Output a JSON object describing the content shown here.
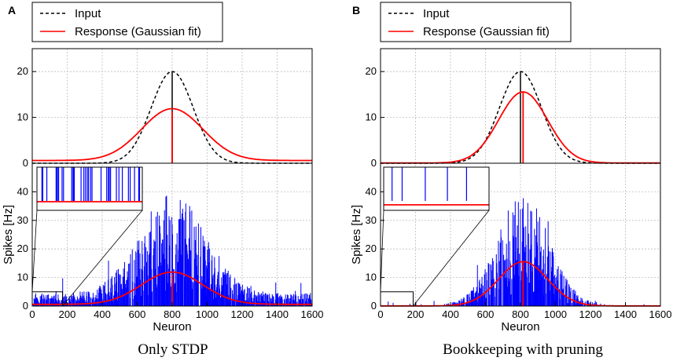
{
  "chart_data": [
    {
      "type": "line",
      "panel_label": "A",
      "caption": "Only STDP",
      "legend": [
        "Input",
        "Response (Gaussian fit)"
      ],
      "colors": {
        "input": "#000000",
        "response": "#ff0000",
        "spikes": "#0000ff",
        "marker": "#000000"
      },
      "top": {
        "ylim": [
          0,
          25
        ],
        "yticks": [
          "0",
          "10",
          "20"
        ],
        "input": {
          "amplitude": 20,
          "center": 800,
          "sigma": 120
        },
        "response": {
          "amplitude": 11.3,
          "baseline": 0.6,
          "center": 800,
          "sigma": 175
        }
      },
      "bottom": {
        "ylim": [
          0,
          50
        ],
        "yticks": [
          "0",
          "10",
          "20",
          "30",
          "40"
        ],
        "ylabel": "Spikes [Hz]",
        "xlabel": "Neuron",
        "xlim": [
          0,
          1600
        ],
        "xticks": [
          "0",
          "200",
          "400",
          "600",
          "800",
          "1000",
          "1200",
          "1400",
          "1600"
        ],
        "spike_amplitude": 20,
        "spike_background": 2.5,
        "fit": {
          "amplitude": 11.3,
          "baseline": 0.6,
          "center": 800,
          "sigma": 175
        },
        "inset": {
          "x_range": [
            0,
            200
          ],
          "y_range": [
            0,
            5
          ],
          "baseline": 1.0
        }
      }
    },
    {
      "type": "line",
      "panel_label": "B",
      "caption": "Bookkeeping with pruning",
      "legend": [
        "Input",
        "Response (Gaussian fit)"
      ],
      "colors": {
        "input": "#000000",
        "response": "#ff0000",
        "spikes": "#0000ff",
        "marker": "#000000"
      },
      "top": {
        "ylim": [
          0,
          25
        ],
        "yticks": [
          "0",
          "10",
          "20"
        ],
        "input": {
          "amplitude": 20,
          "center": 800,
          "sigma": 120
        },
        "response": {
          "amplitude": 15.5,
          "baseline": 0.05,
          "center": 815,
          "sigma": 140
        }
      },
      "bottom": {
        "ylim": [
          0,
          50
        ],
        "yticks": [
          "0",
          "10",
          "20",
          "30",
          "40"
        ],
        "ylabel": "Spikes [Hz]",
        "xlabel": "Neuron",
        "xlim": [
          0,
          1600
        ],
        "xticks": [
          "0",
          "200",
          "400",
          "600",
          "800",
          "1000",
          "1200",
          "1400",
          "1600"
        ],
        "spike_amplitude": 22,
        "spike_background": 0.25,
        "fit": {
          "amplitude": 15.5,
          "baseline": 0.05,
          "center": 815,
          "sigma": 140
        },
        "inset": {
          "x_range": [
            0,
            200
          ],
          "y_range": [
            0,
            5
          ],
          "baseline": 0.0
        }
      }
    }
  ]
}
